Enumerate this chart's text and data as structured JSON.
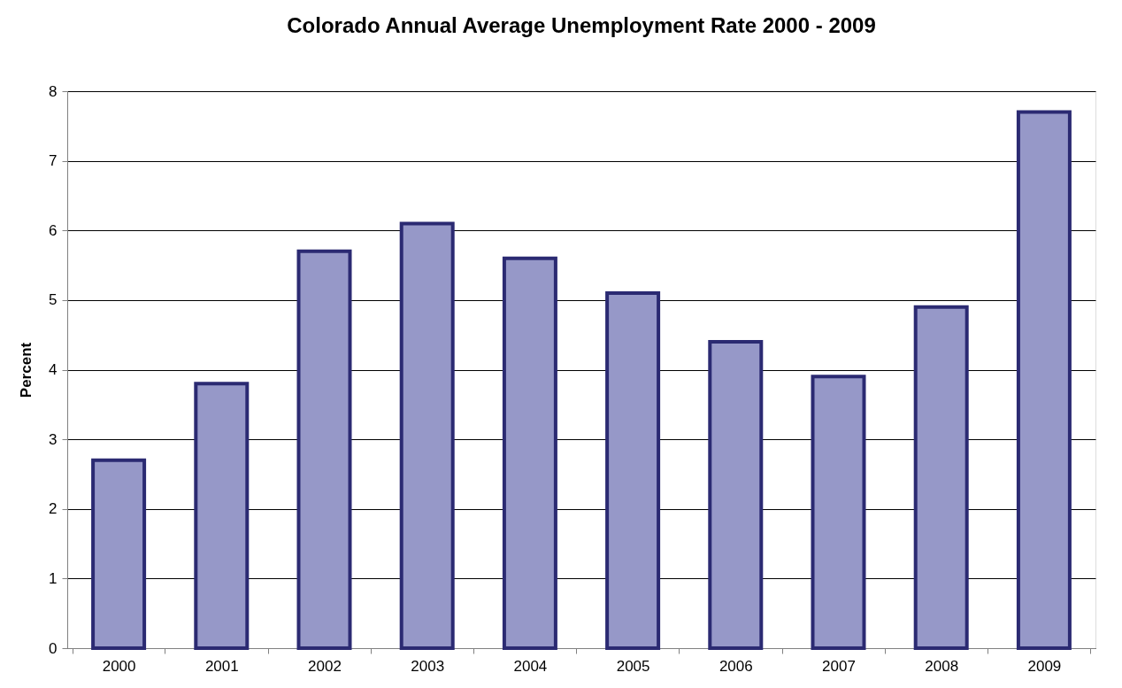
{
  "chart_data": {
    "type": "bar",
    "title": "Colorado Annual Average Unemployment Rate 2000 - 2009",
    "ylabel": "Percent",
    "categories": [
      "2000",
      "2001",
      "2002",
      "2003",
      "2004",
      "2005",
      "2006",
      "2007",
      "2008",
      "2009"
    ],
    "values": [
      2.7,
      3.8,
      5.7,
      6.1,
      5.6,
      5.1,
      4.4,
      3.9,
      4.9,
      7.7
    ],
    "color": "#9698c8",
    "ylim": [
      0,
      8
    ],
    "yticks": [
      0,
      1,
      2,
      3,
      4,
      5,
      6,
      7,
      8
    ],
    "grid": "y"
  }
}
